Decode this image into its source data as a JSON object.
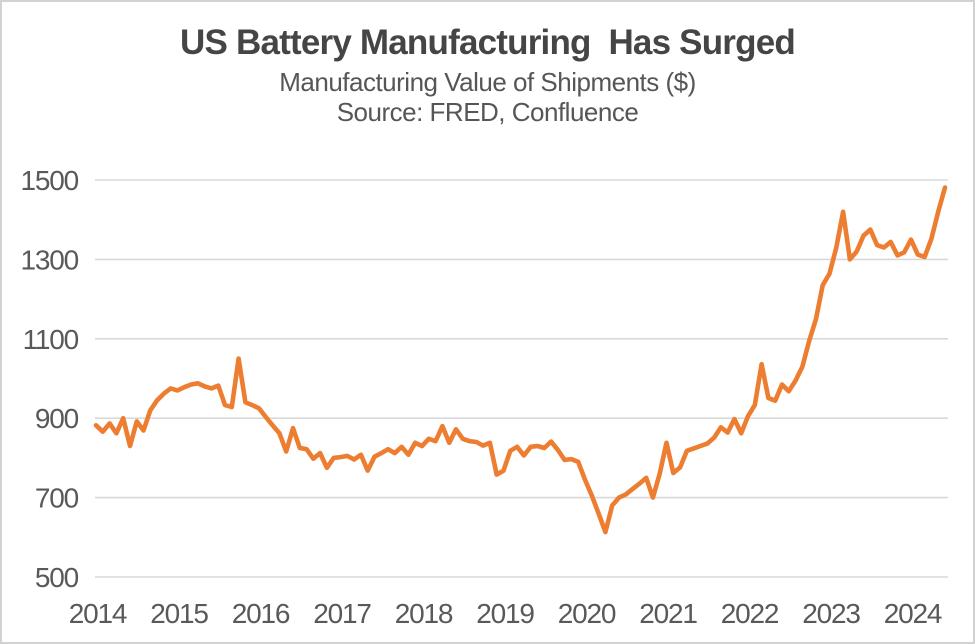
{
  "header": {
    "title": "US Battery Manufacturing  Has Surged",
    "subtitle": "Manufacturing Value of Shipments ($)",
    "source": "Source: FRED, Confluence"
  },
  "colors": {
    "line": "#ED7D31",
    "grid": "#D9D9D9",
    "axis_text": "#595959",
    "title_text": "#454545",
    "border": "#D2D2D2",
    "background": "#FFFFFF"
  },
  "chart_data": {
    "type": "line",
    "title": "US Battery Manufacturing  Has Surged",
    "subtitle": "Manufacturing Value of Shipments ($)",
    "source_note": "Source: FRED, Confluence",
    "frequency": "monthly",
    "x_start_month": "2014-01",
    "x_end_month": "2024-06",
    "x_tick_labels": [
      "2014",
      "2015",
      "2016",
      "2017",
      "2018",
      "2019",
      "2020",
      "2021",
      "2022",
      "2023",
      "2024"
    ],
    "y_ticks": [
      500,
      700,
      900,
      1100,
      1300,
      1500
    ],
    "ylim": [
      500,
      1500
    ],
    "grid": "horizontal-only",
    "legend": "none",
    "series": [
      {
        "name": "US battery manufacturing value of shipments",
        "color": "#ED7D31",
        "monthly_values": [
          882,
          866,
          887,
          862,
          900,
          830,
          892,
          869,
          920,
          945,
          962,
          975,
          970,
          978,
          985,
          988,
          980,
          975,
          982,
          933,
          928,
          1050,
          940,
          933,
          925,
          903,
          882,
          862,
          816,
          875,
          825,
          822,
          798,
          812,
          775,
          800,
          802,
          805,
          796,
          808,
          768,
          803,
          812,
          822,
          812,
          828,
          808,
          838,
          830,
          848,
          842,
          880,
          838,
          872,
          848,
          842,
          840,
          831,
          838,
          758,
          768,
          818,
          828,
          806,
          828,
          830,
          825,
          841,
          820,
          795,
          797,
          790,
          745,
          705,
          660,
          613,
          680,
          700,
          708,
          722,
          735,
          750,
          700,
          760,
          838,
          762,
          776,
          818,
          824,
          830,
          836,
          851,
          877,
          864,
          898,
          862,
          905,
          933,
          1036,
          951,
          944,
          985,
          968,
          995,
          1030,
          1095,
          1150,
          1235,
          1264,
          1330,
          1420,
          1300,
          1320,
          1360,
          1375,
          1336,
          1330,
          1344,
          1310,
          1318,
          1350,
          1312,
          1306,
          1352,
          1420,
          1481
        ]
      }
    ]
  }
}
